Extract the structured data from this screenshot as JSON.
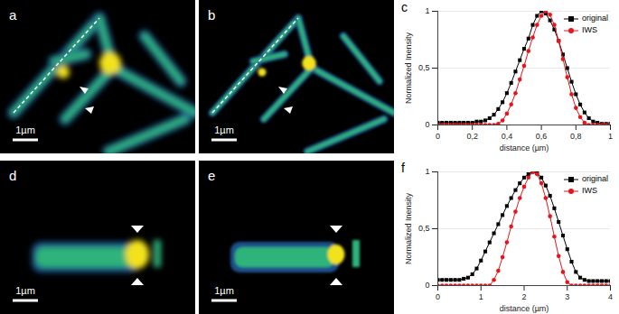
{
  "panels": [
    {
      "label": "a",
      "scale_bar": "1µm"
    },
    {
      "label": "b",
      "scale_bar": "1µm"
    },
    {
      "label": "d",
      "scale_bar": "1µm"
    },
    {
      "label": "e",
      "scale_bar": "1µm"
    }
  ],
  "chart_data": [
    {
      "type": "line",
      "title": "c",
      "x_label": "distance (µm)",
      "y_label": "Normalized Inensity",
      "x": [
        0,
        0.025,
        0.05,
        0.075,
        0.1,
        0.125,
        0.15,
        0.175,
        0.2,
        0.225,
        0.25,
        0.275,
        0.3,
        0.325,
        0.35,
        0.375,
        0.4,
        0.425,
        0.45,
        0.475,
        0.5,
        0.525,
        0.55,
        0.575,
        0.6,
        0.625,
        0.65,
        0.675,
        0.7,
        0.725,
        0.75,
        0.775,
        0.8,
        0.825,
        0.85,
        0.875,
        0.9,
        0.925,
        0.95,
        0.975,
        1
      ],
      "series": [
        {
          "name": "original",
          "color": "#000000",
          "marker": "square",
          "values": [
            0.02,
            0.02,
            0.02,
            0.02,
            0.02,
            0.02,
            0.02,
            0.02,
            0.02,
            0.03,
            0.03,
            0.04,
            0.06,
            0.09,
            0.14,
            0.2,
            0.28,
            0.37,
            0.47,
            0.57,
            0.67,
            0.76,
            0.88,
            0.96,
            1.0,
            0.98,
            0.92,
            0.84,
            0.74,
            0.62,
            0.5,
            0.38,
            0.27,
            0.18,
            0.11,
            0.06,
            0.03,
            0.02,
            0.01,
            0.01,
            0.01
          ]
        },
        {
          "name": "IWS",
          "color": "#e8141b",
          "marker": "circle",
          "values": [
            0,
            0,
            0,
            0,
            0,
            0,
            0,
            0,
            0,
            0,
            0,
            0,
            0,
            0,
            0.01,
            0.04,
            0.1,
            0.18,
            0.28,
            0.4,
            0.52,
            0.65,
            0.77,
            0.88,
            0.96,
            1.0,
            0.97,
            0.88,
            0.74,
            0.58,
            0.42,
            0.27,
            0.15,
            0.07,
            0.02,
            0,
            0,
            0,
            0,
            0,
            0
          ]
        }
      ],
      "xlim": [
        0,
        1
      ],
      "xticks": [
        0,
        {
          "value": 0.2,
          "label": "0,2"
        },
        {
          "value": 0.4,
          "label": "0,4"
        },
        {
          "value": 0.6,
          "label": "0,6"
        },
        {
          "value": 0.8,
          "label": "0,8"
        },
        1
      ],
      "ylim": [
        0,
        1
      ],
      "yticks": [
        0,
        {
          "value": 0.5,
          "label": "0,5"
        },
        1
      ],
      "grid": true,
      "legend": "top-right"
    },
    {
      "type": "line",
      "title": "f",
      "x_label": "distance (µm)",
      "y_label": "Normalized Inensity",
      "x": [
        0,
        0.1,
        0.2,
        0.3,
        0.4,
        0.5,
        0.6,
        0.7,
        0.8,
        0.9,
        1.0,
        1.1,
        1.2,
        1.3,
        1.4,
        1.5,
        1.6,
        1.7,
        1.8,
        1.9,
        2.0,
        2.1,
        2.2,
        2.3,
        2.4,
        2.5,
        2.6,
        2.7,
        2.8,
        2.9,
        3.0,
        3.1,
        3.2,
        3.3,
        3.4,
        3.5,
        3.6,
        3.7,
        3.8,
        3.9,
        4.0
      ],
      "series": [
        {
          "name": "original",
          "color": "#000000",
          "marker": "square",
          "values": [
            0.05,
            0.05,
            0.05,
            0.05,
            0.05,
            0.05,
            0.06,
            0.07,
            0.1,
            0.15,
            0.22,
            0.3,
            0.38,
            0.46,
            0.54,
            0.62,
            0.7,
            0.77,
            0.84,
            0.9,
            0.95,
            0.98,
            1.0,
            0.99,
            0.95,
            0.88,
            0.79,
            0.68,
            0.56,
            0.44,
            0.32,
            0.21,
            0.12,
            0.07,
            0.05,
            0.04,
            0.04,
            0.04,
            0.04,
            0.04,
            0.04
          ]
        },
        {
          "name": "IWS",
          "color": "#e8141b",
          "marker": "circle",
          "values": [
            0,
            0,
            0,
            0,
            0,
            0,
            0,
            0,
            0,
            0,
            0,
            0,
            0,
            0.05,
            0.13,
            0.25,
            0.38,
            0.52,
            0.65,
            0.77,
            0.87,
            0.95,
            1.0,
            0.98,
            0.9,
            0.77,
            0.61,
            0.43,
            0.26,
            0.12,
            0.03,
            0,
            0,
            0,
            0,
            0,
            0,
            0,
            0,
            0,
            0
          ]
        }
      ],
      "xlim": [
        0,
        4
      ],
      "xticks": [
        0,
        1,
        2,
        3,
        4
      ],
      "ylim": [
        0,
        1
      ],
      "yticks": [
        0,
        {
          "value": 0.5,
          "label": "0,5"
        },
        1
      ],
      "grid": true,
      "legend": "top-right"
    }
  ]
}
